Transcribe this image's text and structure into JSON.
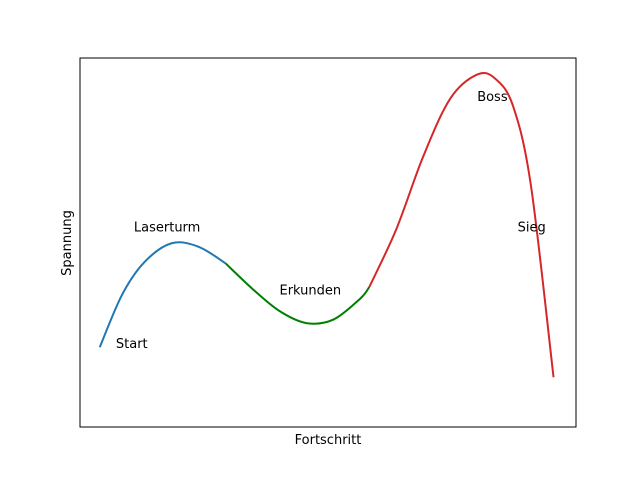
{
  "chart_data": {
    "type": "line",
    "title": "",
    "xlabel": "Fortschritt",
    "ylabel": "Spannung",
    "xlim": [
      -0.22,
      5.3
    ],
    "ylim": [
      -2.59,
      4.76
    ],
    "x_ticks_visible": false,
    "y_ticks_visible": false,
    "grid": false,
    "legend": "none",
    "series": [
      {
        "color": "#1f77b4",
        "x": [
          0.0,
          0.25,
          0.5,
          0.8,
          1.1,
          1.4
        ],
        "y": [
          -1.0,
          0.05,
          0.7,
          1.07,
          1.0,
          0.67
        ]
      },
      {
        "color": "#008000",
        "x": [
          1.4,
          1.7,
          2.0,
          2.3,
          2.6,
          2.9,
          3.0
        ],
        "y": [
          0.67,
          0.16,
          -0.28,
          -0.52,
          -0.45,
          -0.03,
          0.2
        ]
      },
      {
        "color": "#d62728",
        "x": [
          3.0,
          3.3,
          3.6,
          3.9,
          4.2,
          4.4,
          4.6,
          4.8,
          5.05
        ],
        "y": [
          0.2,
          1.35,
          2.8,
          3.95,
          4.43,
          4.35,
          3.8,
          2.2,
          -1.6
        ]
      }
    ],
    "annotations": [
      {
        "text": "Start",
        "x": 0.18,
        "y": -0.92
      },
      {
        "text": "Laserturm",
        "x": 0.38,
        "y": 1.4
      },
      {
        "text": "Erkunden",
        "x": 2.0,
        "y": 0.15
      },
      {
        "text": "Boss",
        "x": 4.2,
        "y": 4.0
      },
      {
        "text": "Sieg",
        "x": 4.65,
        "y": 1.4
      }
    ]
  }
}
